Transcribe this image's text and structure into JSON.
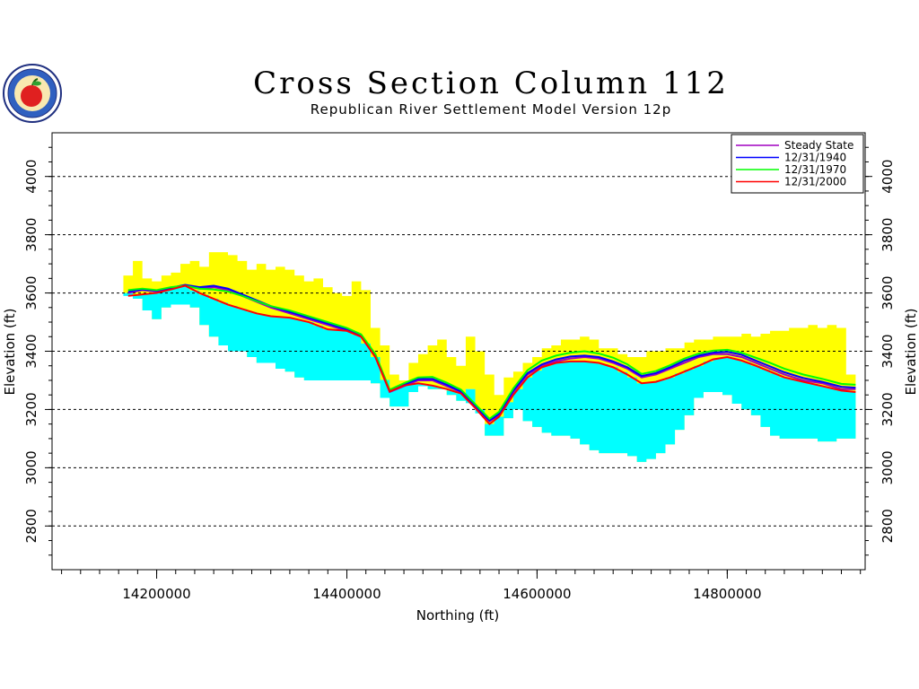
{
  "chart_data": {
    "type": "area",
    "title": "Cross Section Column 112",
    "subtitle": "Republican River Settlement Model Version 12p",
    "xlabel": "Northing (ft)",
    "ylabel": "Elevation (ft)",
    "xlim": [
      14090000,
      14945000
    ],
    "ylim": [
      2650,
      4150
    ],
    "x_ticks": [
      14200000,
      14400000,
      14600000,
      14800000
    ],
    "x_tick_labels": [
      "14200000",
      "14400000",
      "14600000",
      "14800000"
    ],
    "y_ticks": [
      2800,
      3000,
      3200,
      3400,
      3600,
      3800,
      4000
    ],
    "y_tick_labels": [
      "2800",
      "3000",
      "3200",
      "3400",
      "3600",
      "3800",
      "4000"
    ],
    "grid": "horizontal dashed",
    "legend_position": "top-right",
    "layers": [
      {
        "name": "land_surface",
        "color": "#ffff00",
        "x": [
          14170000,
          14180000,
          14190000,
          14200000,
          14210000,
          14220000,
          14230000,
          14240000,
          14250000,
          14260000,
          14270000,
          14280000,
          14290000,
          14300000,
          14310000,
          14320000,
          14330000,
          14340000,
          14350000,
          14360000,
          14370000,
          14380000,
          14390000,
          14400000,
          14410000,
          14420000,
          14430000,
          14440000,
          14450000,
          14460000,
          14470000,
          14480000,
          14490000,
          14500000,
          14510000,
          14520000,
          14530000,
          14540000,
          14550000,
          14560000,
          14570000,
          14580000,
          14590000,
          14600000,
          14610000,
          14620000,
          14630000,
          14640000,
          14650000,
          14660000,
          14670000,
          14680000,
          14690000,
          14700000,
          14710000,
          14720000,
          14730000,
          14740000,
          14750000,
          14760000,
          14770000,
          14780000,
          14790000,
          14800000,
          14810000,
          14820000,
          14830000,
          14840000,
          14850000,
          14860000,
          14870000,
          14880000,
          14890000,
          14900000,
          14910000,
          14920000,
          14930000
        ],
        "values": [
          3660,
          3710,
          3650,
          3640,
          3660,
          3670,
          3700,
          3710,
          3690,
          3740,
          3740,
          3730,
          3710,
          3680,
          3700,
          3680,
          3690,
          3680,
          3660,
          3640,
          3650,
          3620,
          3600,
          3590,
          3640,
          3610,
          3480,
          3420,
          3320,
          3300,
          3360,
          3390,
          3420,
          3440,
          3380,
          3350,
          3450,
          3400,
          3320,
          3250,
          3310,
          3330,
          3360,
          3380,
          3410,
          3420,
          3440,
          3440,
          3450,
          3440,
          3410,
          3410,
          3390,
          3380,
          3380,
          3400,
          3400,
          3410,
          3410,
          3430,
          3440,
          3440,
          3450,
          3450,
          3450,
          3460,
          3450,
          3460,
          3470,
          3470,
          3480,
          3480,
          3490,
          3480,
          3490,
          3480,
          3320
        ]
      },
      {
        "name": "aquifer_base",
        "color": "#00ffff",
        "x": [
          14170000,
          14180000,
          14190000,
          14200000,
          14210000,
          14220000,
          14230000,
          14240000,
          14250000,
          14260000,
          14270000,
          14280000,
          14290000,
          14300000,
          14310000,
          14320000,
          14330000,
          14340000,
          14350000,
          14360000,
          14370000,
          14380000,
          14390000,
          14400000,
          14410000,
          14420000,
          14430000,
          14440000,
          14450000,
          14460000,
          14470000,
          14480000,
          14490000,
          14500000,
          14510000,
          14520000,
          14530000,
          14540000,
          14550000,
          14560000,
          14570000,
          14580000,
          14590000,
          14600000,
          14610000,
          14620000,
          14630000,
          14640000,
          14650000,
          14660000,
          14670000,
          14680000,
          14690000,
          14700000,
          14710000,
          14720000,
          14730000,
          14740000,
          14750000,
          14760000,
          14770000,
          14780000,
          14790000,
          14800000,
          14810000,
          14820000,
          14830000,
          14840000,
          14850000,
          14860000,
          14870000,
          14880000,
          14890000,
          14900000,
          14910000,
          14920000,
          14930000
        ],
        "values": [
          3600,
          3580,
          3540,
          3510,
          3550,
          3560,
          3560,
          3550,
          3490,
          3450,
          3420,
          3400,
          3400,
          3380,
          3360,
          3360,
          3340,
          3330,
          3310,
          3300,
          3300,
          3300,
          3300,
          3300,
          3300,
          3300,
          3290,
          3240,
          3210,
          3210,
          3260,
          3280,
          3270,
          3270,
          3250,
          3230,
          3270,
          3200,
          3110,
          3110,
          3170,
          3200,
          3160,
          3140,
          3120,
          3110,
          3110,
          3100,
          3080,
          3060,
          3050,
          3050,
          3050,
          3040,
          3020,
          3030,
          3050,
          3080,
          3130,
          3180,
          3240,
          3260,
          3260,
          3250,
          3220,
          3200,
          3180,
          3140,
          3110,
          3100,
          3100,
          3100,
          3100,
          3090,
          3090,
          3100,
          3100
        ]
      }
    ],
    "series": [
      {
        "name": "Steady State",
        "color": "#a000c0",
        "x": [
          14170000,
          14185000,
          14200000,
          14215000,
          14230000,
          14245000,
          14260000,
          14275000,
          14290000,
          14305000,
          14320000,
          14340000,
          14360000,
          14380000,
          14400000,
          14415000,
          14430000,
          14445000,
          14460000,
          14475000,
          14490000,
          14505000,
          14520000,
          14535000,
          14550000,
          14560000,
          14575000,
          14590000,
          14605000,
          14620000,
          14635000,
          14650000,
          14665000,
          14680000,
          14695000,
          14710000,
          14725000,
          14740000,
          14755000,
          14770000,
          14785000,
          14800000,
          14815000,
          14830000,
          14845000,
          14860000,
          14880000,
          14900000,
          14920000,
          14935000
        ],
        "values": [
          3600,
          3610,
          3605,
          3615,
          3625,
          3615,
          3620,
          3610,
          3590,
          3570,
          3550,
          3530,
          3510,
          3490,
          3470,
          3450,
          3380,
          3260,
          3280,
          3300,
          3300,
          3280,
          3260,
          3210,
          3160,
          3180,
          3260,
          3320,
          3350,
          3365,
          3375,
          3380,
          3375,
          3360,
          3340,
          3310,
          3320,
          3340,
          3360,
          3380,
          3390,
          3390,
          3380,
          3360,
          3340,
          3320,
          3300,
          3290,
          3270,
          3270
        ]
      },
      {
        "name": "12/31/1940",
        "color": "#0000ff",
        "x": [
          14170000,
          14185000,
          14200000,
          14215000,
          14230000,
          14245000,
          14260000,
          14275000,
          14290000,
          14305000,
          14320000,
          14340000,
          14360000,
          14380000,
          14400000,
          14415000,
          14430000,
          14445000,
          14460000,
          14475000,
          14490000,
          14505000,
          14520000,
          14535000,
          14550000,
          14560000,
          14575000,
          14590000,
          14605000,
          14620000,
          14635000,
          14650000,
          14665000,
          14680000,
          14695000,
          14710000,
          14725000,
          14740000,
          14755000,
          14770000,
          14785000,
          14800000,
          14815000,
          14830000,
          14845000,
          14860000,
          14880000,
          14900000,
          14920000,
          14935000
        ],
        "values": [
          3605,
          3612,
          3608,
          3618,
          3628,
          3620,
          3625,
          3615,
          3595,
          3575,
          3555,
          3535,
          3515,
          3495,
          3475,
          3455,
          3385,
          3265,
          3285,
          3305,
          3305,
          3285,
          3262,
          3212,
          3162,
          3185,
          3265,
          3325,
          3355,
          3372,
          3382,
          3385,
          3380,
          3365,
          3345,
          3315,
          3325,
          3345,
          3368,
          3385,
          3395,
          3398,
          3388,
          3368,
          3348,
          3328,
          3308,
          3295,
          3278,
          3275
        ]
      },
      {
        "name": "12/31/1970",
        "color": "#00ff00",
        "x": [
          14170000,
          14185000,
          14200000,
          14215000,
          14230000,
          14245000,
          14260000,
          14275000,
          14290000,
          14305000,
          14320000,
          14340000,
          14360000,
          14380000,
          14400000,
          14415000,
          14430000,
          14445000,
          14460000,
          14475000,
          14490000,
          14505000,
          14520000,
          14535000,
          14550000,
          14560000,
          14575000,
          14590000,
          14605000,
          14620000,
          14635000,
          14650000,
          14665000,
          14680000,
          14695000,
          14710000,
          14725000,
          14740000,
          14755000,
          14770000,
          14785000,
          14800000,
          14815000,
          14830000,
          14845000,
          14860000,
          14880000,
          14900000,
          14920000,
          14935000
        ],
        "values": [
          3610,
          3615,
          3610,
          3620,
          3625,
          3615,
          3612,
          3605,
          3590,
          3572,
          3555,
          3540,
          3520,
          3500,
          3480,
          3458,
          3390,
          3268,
          3290,
          3310,
          3312,
          3292,
          3268,
          3218,
          3168,
          3192,
          3272,
          3335,
          3368,
          3385,
          3395,
          3400,
          3392,
          3378,
          3355,
          3322,
          3332,
          3352,
          3375,
          3392,
          3402,
          3405,
          3395,
          3378,
          3360,
          3340,
          3320,
          3305,
          3288,
          3285
        ]
      },
      {
        "name": "12/31/2000",
        "color": "#ff0000",
        "x": [
          14170000,
          14185000,
          14200000,
          14215000,
          14230000,
          14245000,
          14260000,
          14275000,
          14290000,
          14305000,
          14320000,
          14340000,
          14360000,
          14380000,
          14400000,
          14415000,
          14430000,
          14445000,
          14460000,
          14475000,
          14490000,
          14505000,
          14520000,
          14535000,
          14550000,
          14560000,
          14575000,
          14590000,
          14605000,
          14620000,
          14635000,
          14650000,
          14665000,
          14680000,
          14695000,
          14710000,
          14725000,
          14740000,
          14755000,
          14770000,
          14785000,
          14800000,
          14815000,
          14830000,
          14845000,
          14860000,
          14880000,
          14900000,
          14920000,
          14935000
        ],
        "values": [
          3590,
          3595,
          3600,
          3612,
          3625,
          3600,
          3580,
          3560,
          3545,
          3530,
          3520,
          3515,
          3500,
          3475,
          3470,
          3450,
          3380,
          3262,
          3282,
          3290,
          3282,
          3270,
          3255,
          3205,
          3150,
          3175,
          3250,
          3310,
          3345,
          3360,
          3365,
          3365,
          3360,
          3345,
          3320,
          3290,
          3295,
          3310,
          3330,
          3350,
          3372,
          3380,
          3368,
          3350,
          3330,
          3310,
          3295,
          3280,
          3265,
          3260
        ]
      }
    ]
  }
}
